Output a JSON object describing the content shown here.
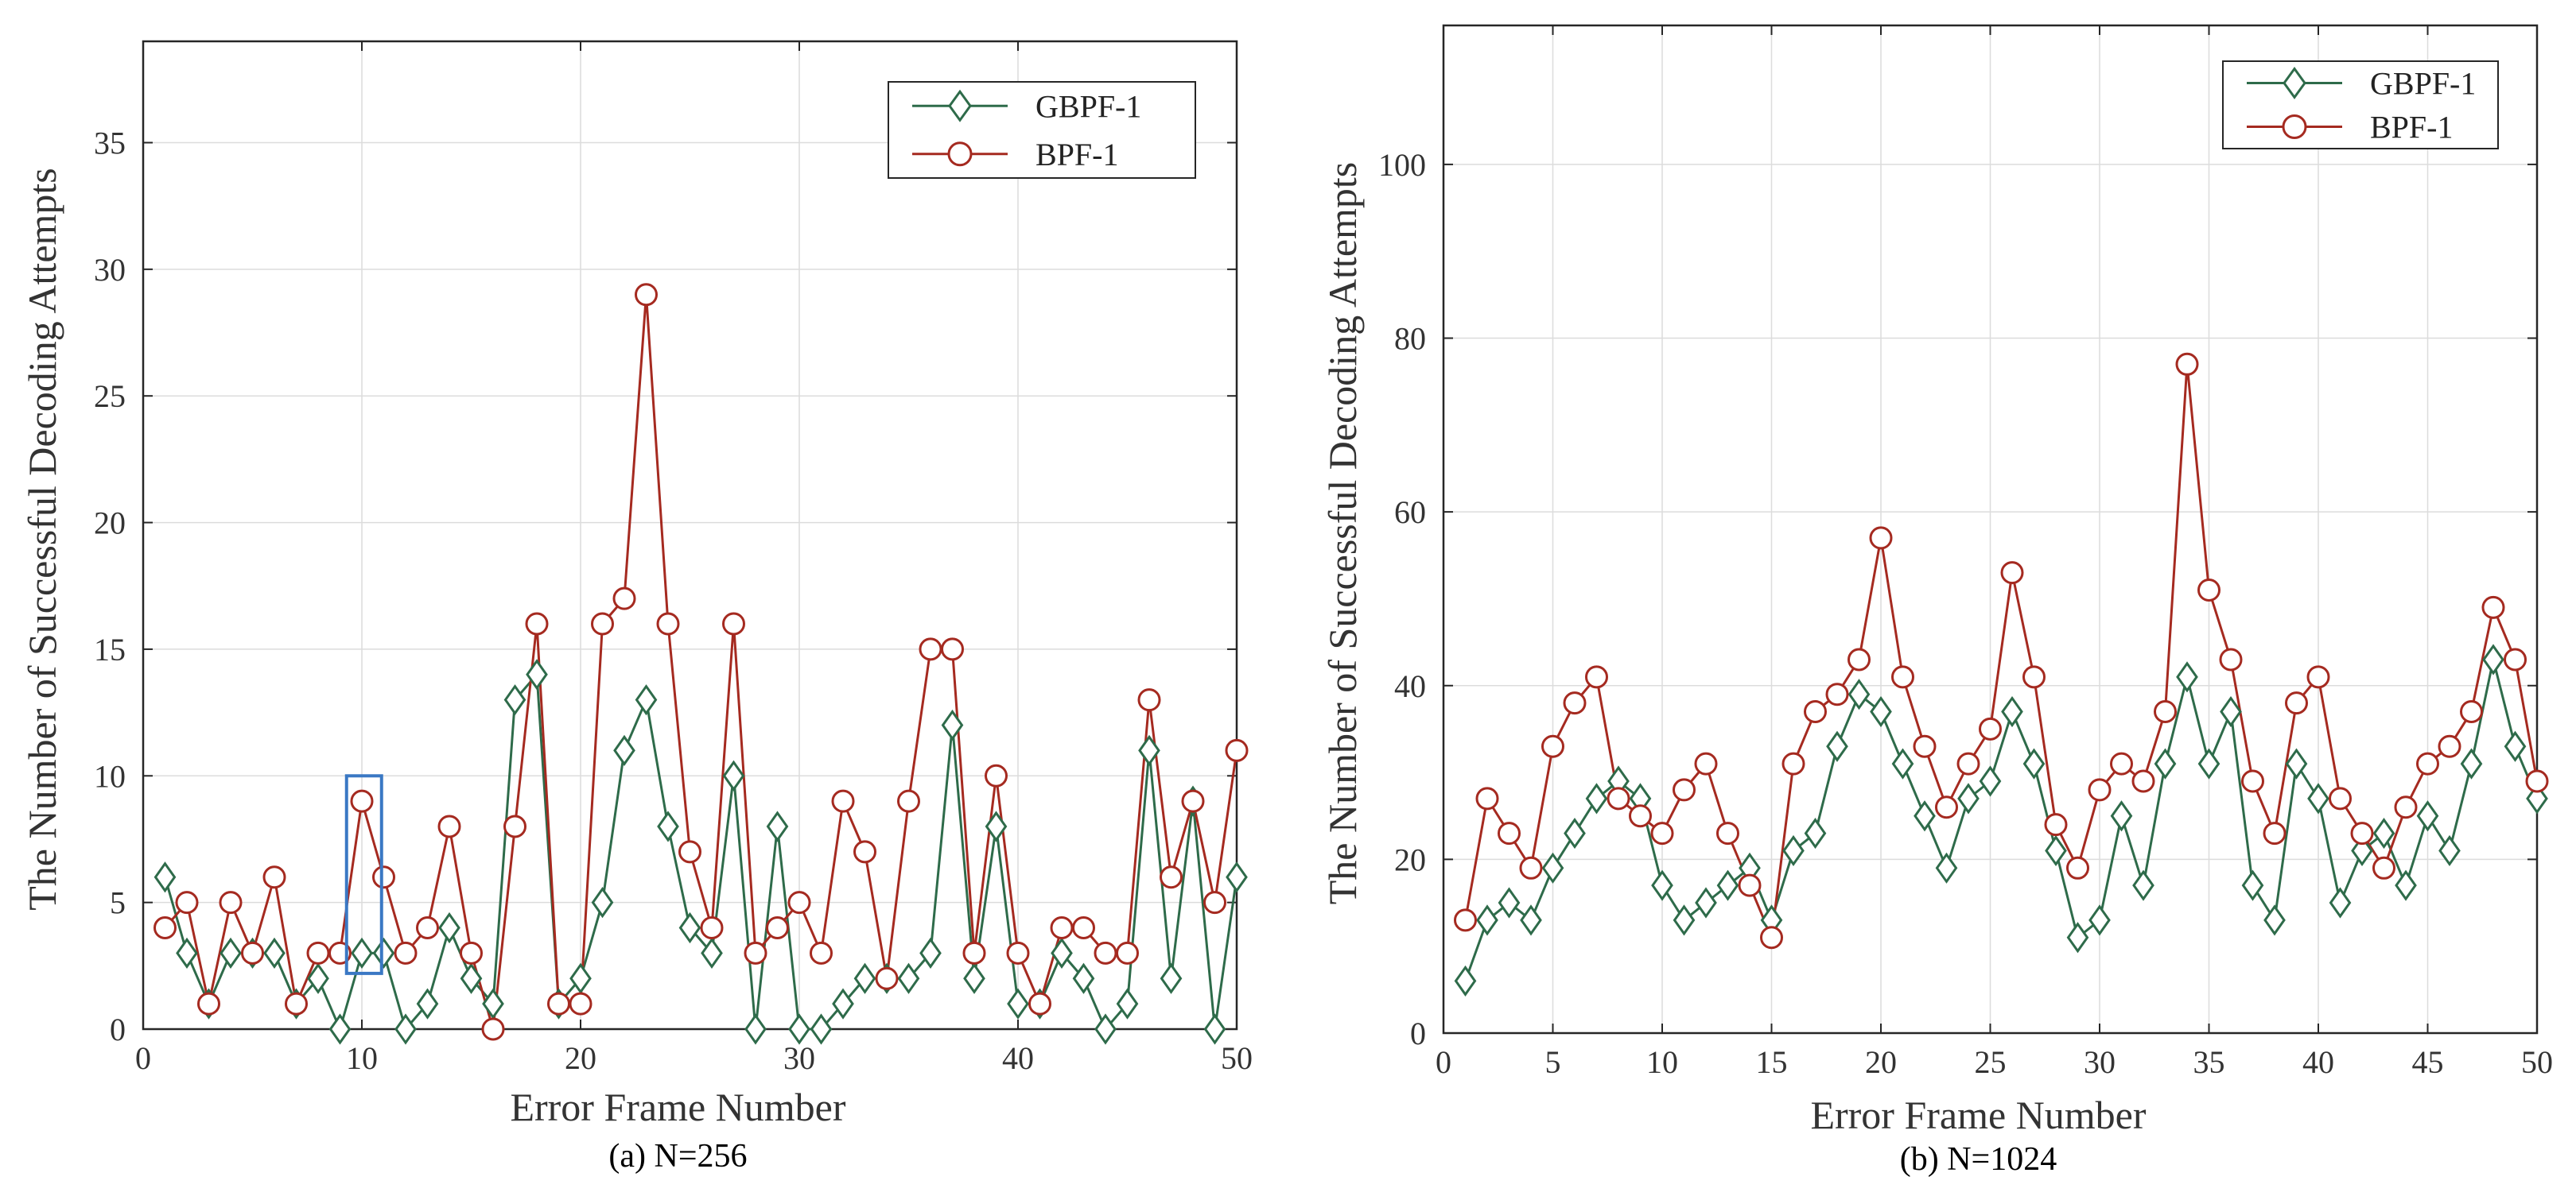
{
  "colors": {
    "gbpf": "#2e6b4a",
    "bpf": "#a52a20",
    "highlight": "#3a78c4"
  },
  "chart_data": [
    {
      "type": "line",
      "caption": "(a) N=256",
      "xlabel": "Error   Frame   Number",
      "ylabel": "The  Number  of  Successful  Decoding  Attempts",
      "xlim": [
        0,
        50
      ],
      "ylim": [
        0,
        39
      ],
      "xticks": [
        0,
        10,
        20,
        30,
        40,
        50
      ],
      "yticks": [
        0,
        5,
        10,
        15,
        20,
        25,
        30,
        35
      ],
      "grid": true,
      "legend_position": "top-right",
      "x": [
        1,
        2,
        3,
        4,
        5,
        6,
        7,
        8,
        9,
        10,
        11,
        12,
        13,
        14,
        15,
        16,
        17,
        18,
        19,
        20,
        21,
        22,
        23,
        24,
        25,
        26,
        27,
        28,
        29,
        30,
        31,
        32,
        33,
        34,
        35,
        36,
        37,
        38,
        39,
        40,
        41,
        42,
        43,
        44,
        45,
        46,
        47,
        48,
        49,
        50
      ],
      "series": [
        {
          "name": "GBPF-1",
          "marker": "diamond",
          "color_key": "gbpf",
          "values": [
            6,
            3,
            1,
            3,
            3,
            3,
            1,
            2,
            0,
            3,
            3,
            0,
            1,
            4,
            2,
            1,
            13,
            14,
            1,
            2,
            5,
            11,
            13,
            8,
            4,
            3,
            10,
            0,
            8,
            0,
            0,
            1,
            2,
            2,
            2,
            3,
            12,
            2,
            8,
            1,
            1,
            3,
            2,
            0,
            1,
            11,
            2,
            9,
            0,
            6
          ]
        },
        {
          "name": "BPF-1",
          "marker": "circle",
          "color_key": "bpf",
          "values": [
            4,
            5,
            1,
            5,
            3,
            6,
            1,
            3,
            3,
            9,
            6,
            3,
            4,
            8,
            3,
            0,
            8,
            16,
            1,
            1,
            16,
            17,
            29,
            16,
            7,
            4,
            16,
            3,
            4,
            5,
            3,
            9,
            7,
            2,
            9,
            15,
            15,
            3,
            10,
            3,
            1,
            4,
            4,
            3,
            3,
            13,
            6,
            9,
            5,
            11
          ]
        }
      ],
      "annotations": [
        {
          "type": "rectangle",
          "x_range": [
            9.3,
            10.9
          ],
          "y_range": [
            2.2,
            10
          ],
          "color_key": "highlight"
        }
      ]
    },
    {
      "type": "line",
      "caption": "(b) N=1024",
      "xlabel": "Error   Frame   Number",
      "ylabel": "The  Number  of  Successful  Decoding  Attempts",
      "xlim": [
        0,
        50
      ],
      "ylim": [
        0,
        116
      ],
      "xticks": [
        0,
        5,
        10,
        15,
        20,
        25,
        30,
        35,
        40,
        45,
        50
      ],
      "yticks": [
        0,
        20,
        40,
        60,
        80,
        100
      ],
      "grid": true,
      "legend_position": "top-right",
      "x": [
        1,
        2,
        3,
        4,
        5,
        6,
        7,
        8,
        9,
        10,
        11,
        12,
        13,
        14,
        15,
        16,
        17,
        18,
        19,
        20,
        21,
        22,
        23,
        24,
        25,
        26,
        27,
        28,
        29,
        30,
        31,
        32,
        33,
        34,
        35,
        36,
        37,
        38,
        39,
        40,
        41,
        42,
        43,
        44,
        45,
        46,
        47,
        48,
        49,
        50
      ],
      "series": [
        {
          "name": "GBPF-1",
          "marker": "diamond",
          "color_key": "gbpf",
          "values": [
            6,
            13,
            15,
            13,
            19,
            23,
            27,
            29,
            27,
            17,
            13,
            15,
            17,
            19,
            13,
            21,
            23,
            33,
            39,
            37,
            31,
            25,
            19,
            27,
            29,
            37,
            31,
            21,
            11,
            13,
            25,
            17,
            31,
            41,
            31,
            37,
            17,
            13,
            31,
            27,
            15,
            21,
            23,
            17,
            25,
            21,
            31,
            43,
            33,
            27
          ]
        },
        {
          "name": "BPF-1",
          "marker": "circle",
          "color_key": "bpf",
          "values": [
            13,
            27,
            23,
            19,
            33,
            38,
            41,
            27,
            25,
            23,
            28,
            31,
            23,
            17,
            11,
            31,
            37,
            39,
            43,
            57,
            41,
            33,
            26,
            31,
            35,
            53,
            41,
            24,
            19,
            28,
            31,
            29,
            37,
            77,
            51,
            43,
            29,
            23,
            38,
            41,
            27,
            23,
            19,
            26,
            31,
            33,
            37,
            49,
            43,
            29
          ]
        }
      ],
      "annotations": []
    }
  ]
}
